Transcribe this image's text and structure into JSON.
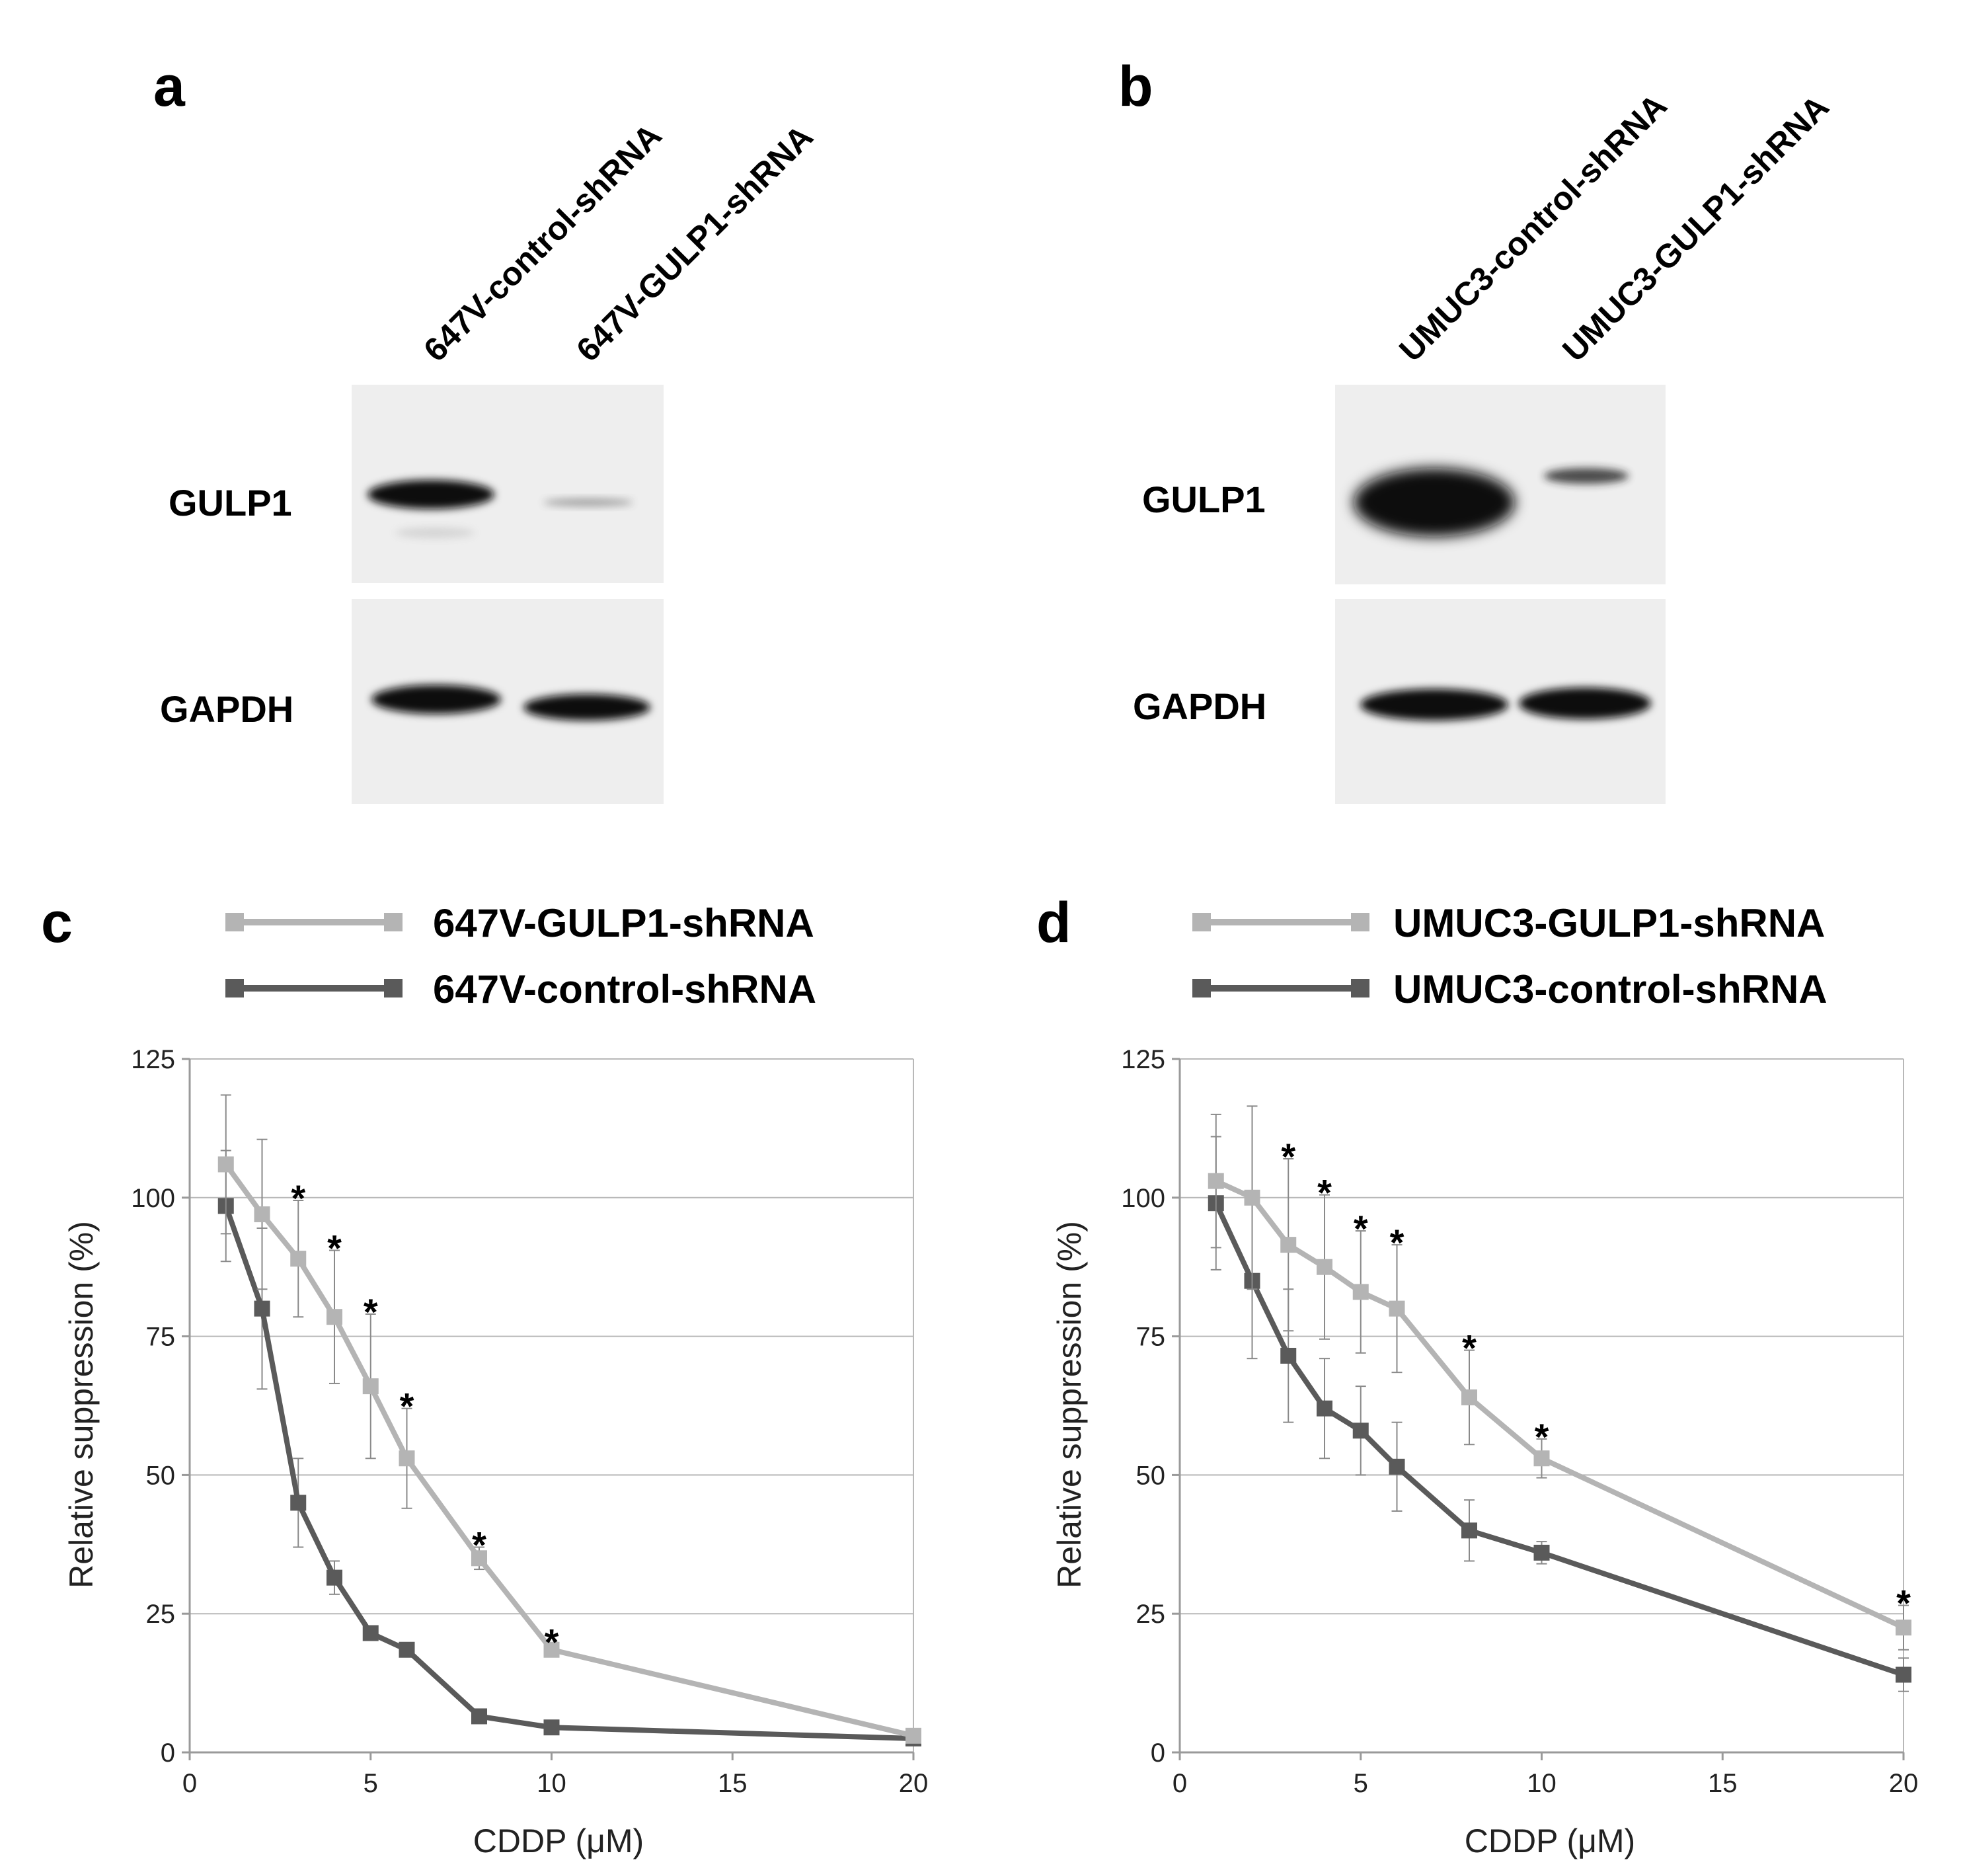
{
  "colors": {
    "gulp1_series": "#b4b4b4",
    "control_series": "#5a5a5a",
    "gridline": "#b8b8b8",
    "axis": "#9a9a9a",
    "blot_background": "#eeeeee",
    "band": "#0d0d0d"
  },
  "blots": [
    {
      "panel": "a",
      "lanes": [
        "647V-control-shRNA",
        "647V-GULP1-shRNA"
      ],
      "rows": [
        {
          "label": "GULP1",
          "band_intensity": [
            1.0,
            0.12
          ]
        },
        {
          "label": "GAPDH",
          "band_intensity": [
            1.0,
            1.0
          ]
        }
      ]
    },
    {
      "panel": "b",
      "lanes": [
        "UMUC3-control-shRNA",
        "UMUC3-GULP1-shRNA"
      ],
      "rows": [
        {
          "label": "GULP1",
          "band_intensity": [
            1.0,
            0.35
          ]
        },
        {
          "label": "GAPDH",
          "band_intensity": [
            1.0,
            1.0
          ]
        }
      ]
    }
  ],
  "chart_data": [
    {
      "panel": "c",
      "type": "line",
      "title": "",
      "xlabel": "CDDP (μM)",
      "ylabel": "Relative suppression (%)",
      "xlim": [
        0,
        20
      ],
      "ylim": [
        0,
        125
      ],
      "xticks": [
        "0",
        "5",
        "10",
        "15",
        "20"
      ],
      "yticks": [
        "0",
        "25",
        "50",
        "75",
        "100",
        "125"
      ],
      "grid": true,
      "legend_position": "top",
      "x": [
        1,
        2,
        3,
        4,
        5,
        6,
        8,
        10,
        20
      ],
      "series": [
        {
          "name": "647V-GULP1-shRNA",
          "color_key": "gulp1_series",
          "values": [
            106,
            97,
            89,
            78.5,
            66,
            53,
            35,
            18.5,
            3
          ],
          "errors": [
            12.5,
            13.5,
            10.5,
            12,
            13,
            9,
            2,
            1,
            1
          ]
        },
        {
          "name": "647V-control-shRNA",
          "color_key": "control_series",
          "values": [
            98.5,
            80,
            45,
            31.5,
            21.5,
            18.5,
            6.5,
            4.5,
            2.5
          ],
          "errors": [
            10,
            14.5,
            8,
            3,
            1,
            1,
            1,
            1,
            0.5
          ]
        }
      ],
      "significance": [
        "",
        "",
        "*",
        "*",
        "*",
        "*",
        "*",
        "*",
        ""
      ]
    },
    {
      "panel": "d",
      "type": "line",
      "title": "",
      "xlabel": "CDDP (μM)",
      "ylabel": "Relative suppression (%)",
      "xlim": [
        0,
        20
      ],
      "ylim": [
        0,
        125
      ],
      "xticks": [
        "0",
        "5",
        "10",
        "15",
        "20"
      ],
      "yticks": [
        "0",
        "25",
        "50",
        "75",
        "100",
        "125"
      ],
      "grid": true,
      "legend_position": "top",
      "x": [
        1,
        2,
        3,
        4,
        5,
        6,
        8,
        10,
        20
      ],
      "series": [
        {
          "name": "UMUC3-GULP1-shRNA",
          "color_key": "gulp1_series",
          "values": [
            103,
            100,
            91.5,
            87.5,
            83,
            80,
            64,
            53,
            22.5
          ],
          "errors": [
            12,
            16.5,
            15.5,
            13,
            11,
            11.5,
            8.5,
            3.5,
            4
          ]
        },
        {
          "name": "UMUC3-control-shRNA",
          "color_key": "control_series",
          "values": [
            99,
            85,
            71.5,
            62,
            58,
            51.5,
            40,
            36,
            14
          ],
          "errors": [
            12,
            14,
            12,
            9,
            8,
            8,
            5.5,
            2,
            3
          ]
        }
      ],
      "significance": [
        "",
        "",
        "*",
        "*",
        "*",
        "*",
        "*",
        "*",
        "*"
      ]
    }
  ]
}
